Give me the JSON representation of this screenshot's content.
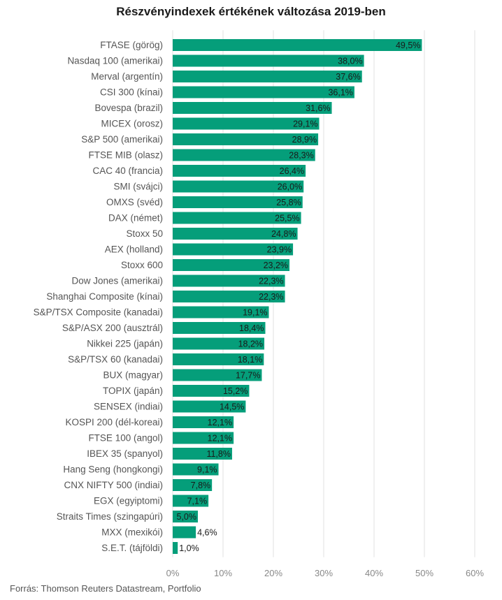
{
  "chart_data": {
    "type": "bar",
    "orientation": "horizontal",
    "title": "Részvényindexek értékének változása 2019-ben",
    "categories": [
      "FTASE (görög)",
      "Nasdaq 100 (amerikai)",
      "Merval (argentín)",
      "CSI 300 (kínai)",
      "Bovespa (brazil)",
      "MICEX (orosz)",
      "S&P 500 (amerikai)",
      "FTSE MIB (olasz)",
      "CAC 40 (francia)",
      "SMI (svájci)",
      "OMXS (svéd)",
      "DAX (német)",
      "Stoxx 50",
      "AEX (holland)",
      "Stoxx 600",
      "Dow Jones (amerikai)",
      "Shanghai Composite (kínai)",
      "S&P/TSX Composite (kanadai)",
      "S&P/ASX 200 (ausztrál)",
      "Nikkei 225 (japán)",
      "S&P/TSX 60 (kanadai)",
      "BUX (magyar)",
      "TOPIX (japán)",
      "SENSEX (indiai)",
      "KOSPI 200 (dél-koreai)",
      "FTSE 100 (angol)",
      "IBEX 35 (spanyol)",
      "Hang Seng (hongkongi)",
      "CNX NIFTY 500 (indiai)",
      "EGX (egyiptomi)",
      "Straits Times (szingapúri)",
      "MXX (mexikói)",
      "S.E.T. (tájföldi)"
    ],
    "values": [
      49.5,
      38.0,
      37.6,
      36.1,
      31.6,
      29.1,
      28.9,
      28.3,
      26.4,
      26.0,
      25.8,
      25.5,
      24.8,
      23.9,
      23.2,
      22.3,
      22.3,
      19.1,
      18.4,
      18.2,
      18.1,
      17.7,
      15.2,
      14.5,
      12.1,
      12.1,
      11.8,
      9.1,
      7.8,
      7.1,
      5.0,
      4.6,
      1.0
    ],
    "value_labels": [
      "49,5%",
      "38,0%",
      "37,6%",
      "36,1%",
      "31,6%",
      "29,1%",
      "28,9%",
      "28,3%",
      "26,4%",
      "26,0%",
      "25,8%",
      "25,5%",
      "24,8%",
      "23,9%",
      "23,2%",
      "22,3%",
      "22,3%",
      "19,1%",
      "18,4%",
      "18,2%",
      "18,1%",
      "17,7%",
      "15,2%",
      "14,5%",
      "12,1%",
      "12,1%",
      "11,8%",
      "9,1%",
      "7,8%",
      "7,1%",
      "5,0%",
      "4,6%",
      "1,0%"
    ],
    "xlim": [
      0,
      60
    ],
    "x_ticks": [
      0,
      10,
      20,
      30,
      40,
      50,
      60
    ],
    "x_tick_labels": [
      "0%",
      "10%",
      "20%",
      "30%",
      "40%",
      "50%",
      "60%"
    ],
    "grid": "vertical",
    "bar_color": "#059e7a",
    "source": "Forrás: Thomson Reuters Datastream, Portfolio"
  }
}
